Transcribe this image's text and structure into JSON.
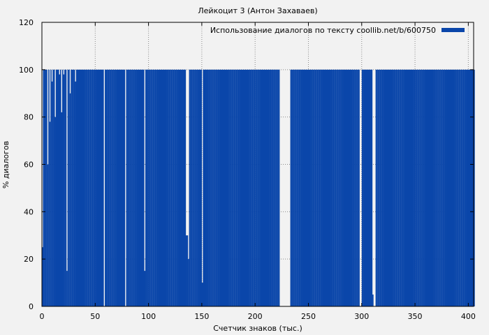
{
  "chart_data": {
    "type": "area",
    "title": "Лейкоцит 3 (Антон Захаваев)",
    "xlabel": "Счетчик знаков (тыс.)",
    "ylabel": "% диалогов",
    "xlim": [
      0,
      405
    ],
    "ylim": [
      0,
      120
    ],
    "x_ticks": [
      0,
      50,
      100,
      150,
      200,
      250,
      300,
      350,
      400
    ],
    "y_ticks": [
      0,
      20,
      40,
      60,
      80,
      100,
      120
    ],
    "grid": true,
    "legend_position": "top-right",
    "series": [
      {
        "name": "Использование диалогов по тексту coollib.net/b/600750",
        "color": "#0a46aa",
        "x": [
          0,
          1,
          2,
          3,
          4,
          5,
          6,
          7,
          8,
          9,
          10,
          11,
          12,
          13,
          14,
          15,
          16,
          17,
          18,
          19,
          20,
          21,
          22,
          23,
          24,
          25,
          26,
          27,
          28,
          29,
          30,
          31,
          32,
          33,
          34,
          35,
          36,
          37,
          38,
          39,
          40,
          41,
          42,
          43,
          44,
          45,
          46,
          47,
          48,
          49,
          50,
          51,
          52,
          53,
          54,
          55,
          56,
          57,
          58,
          59,
          60,
          61,
          62,
          63,
          64,
          65,
          66,
          67,
          68,
          69,
          70,
          71,
          72,
          73,
          74,
          75,
          76,
          77,
          78,
          79,
          80,
          81,
          82,
          83,
          84,
          85,
          86,
          87,
          88,
          89,
          90,
          91,
          92,
          93,
          94,
          95,
          96,
          97,
          98,
          99,
          100,
          101,
          102,
          103,
          104,
          105,
          106,
          107,
          108,
          109,
          110,
          111,
          112,
          113,
          114,
          115,
          116,
          117,
          118,
          119,
          120,
          121,
          122,
          123,
          124,
          125,
          126,
          127,
          128,
          129,
          130,
          131,
          132,
          133,
          134,
          135,
          136,
          137,
          138,
          139,
          140,
          141,
          142,
          143,
          144,
          145,
          146,
          147,
          148,
          149,
          150,
          151,
          152,
          153,
          154,
          155,
          156,
          157,
          158,
          159,
          160,
          161,
          162,
          163,
          164,
          165,
          166,
          167,
          168,
          169,
          170,
          171,
          172,
          173,
          174,
          175,
          176,
          177,
          178,
          179,
          180,
          181,
          182,
          183,
          184,
          185,
          186,
          187,
          188,
          189,
          190,
          191,
          192,
          193,
          194,
          195,
          196,
          197,
          198,
          199,
          200,
          201,
          202,
          203,
          204,
          205,
          206,
          207,
          208,
          209,
          210,
          211,
          212,
          213,
          214,
          215,
          216,
          217,
          218,
          219,
          220,
          221,
          222,
          223,
          224,
          225,
          226,
          227,
          228,
          229,
          230,
          231,
          232,
          233,
          234,
          235,
          236,
          237,
          238,
          239,
          240,
          241,
          242,
          243,
          244,
          245,
          246,
          247,
          248,
          249,
          250,
          251,
          252,
          253,
          254,
          255,
          256,
          257,
          258,
          259,
          260,
          261,
          262,
          263,
          264,
          265,
          266,
          267,
          268,
          269,
          270,
          271,
          272,
          273,
          274,
          275,
          276,
          277,
          278,
          279,
          280,
          281,
          282,
          283,
          284,
          285,
          286,
          287,
          288,
          289,
          290,
          291,
          292,
          293,
          294,
          295,
          296,
          297,
          298,
          299,
          300,
          301,
          302,
          303,
          304,
          305,
          306,
          307,
          308,
          309,
          310,
          311,
          312,
          313,
          314,
          315,
          316,
          317,
          318,
          319,
          320,
          321,
          322,
          323,
          324,
          325,
          326,
          327,
          328,
          329,
          330,
          331,
          332,
          333,
          334,
          335,
          336,
          337,
          338,
          339,
          340,
          341,
          342,
          343,
          344,
          345,
          346,
          347,
          348,
          349,
          350,
          351,
          352,
          353,
          354,
          355,
          356,
          357,
          358,
          359,
          360,
          361,
          362,
          363,
          364,
          365,
          366,
          367,
          368,
          369,
          370,
          371,
          372,
          373,
          374,
          375,
          376,
          377,
          378,
          379,
          380,
          381,
          382,
          383,
          384,
          385,
          386,
          387,
          388,
          389,
          390,
          391,
          392,
          393,
          394,
          395,
          396,
          397,
          398,
          399,
          400,
          401,
          402,
          403,
          404,
          405
        ],
        "values": [
          25,
          100,
          100,
          100,
          100,
          60,
          100,
          78,
          100,
          95,
          100,
          100,
          80,
          100,
          100,
          100,
          98,
          100,
          82,
          100,
          98,
          100,
          100,
          15,
          100,
          100,
          90,
          100,
          100,
          100,
          100,
          95,
          100,
          100,
          100,
          100,
          100,
          100,
          100,
          100,
          100,
          100,
          100,
          100,
          100,
          100,
          100,
          100,
          100,
          100,
          100,
          100,
          100,
          100,
          100,
          100,
          100,
          100,
          0,
          100,
          100,
          100,
          100,
          100,
          100,
          100,
          100,
          100,
          100,
          100,
          100,
          100,
          100,
          100,
          100,
          100,
          100,
          100,
          0,
          100,
          100,
          100,
          100,
          100,
          100,
          100,
          100,
          100,
          100,
          100,
          100,
          100,
          100,
          100,
          100,
          100,
          15,
          100,
          100,
          100,
          100,
          100,
          100,
          100,
          100,
          100,
          100,
          100,
          100,
          100,
          100,
          100,
          100,
          100,
          100,
          100,
          100,
          100,
          100,
          100,
          100,
          100,
          100,
          100,
          100,
          100,
          100,
          100,
          100,
          100,
          100,
          100,
          100,
          100,
          100,
          30,
          30,
          20,
          100,
          100,
          100,
          100,
          100,
          100,
          100,
          100,
          100,
          100,
          100,
          100,
          10,
          100,
          100,
          100,
          100,
          100,
          100,
          100,
          100,
          100,
          100,
          100,
          100,
          100,
          100,
          100,
          100,
          100,
          100,
          100,
          100,
          100,
          100,
          100,
          100,
          100,
          100,
          100,
          100,
          100,
          100,
          100,
          100,
          100,
          100,
          100,
          100,
          100,
          100,
          100,
          100,
          100,
          100,
          100,
          100,
          100,
          100,
          100,
          100,
          100,
          100,
          100,
          100,
          100,
          100,
          100,
          100,
          100,
          100,
          100,
          100,
          100,
          100,
          100,
          100,
          100,
          100,
          100,
          100,
          100,
          100,
          100,
          100,
          0,
          0,
          0,
          0,
          0,
          0,
          0,
          0,
          0,
          0,
          100,
          100,
          100,
          100,
          100,
          100,
          100,
          100,
          100,
          100,
          100,
          100,
          100,
          100,
          100,
          100,
          100,
          100,
          100,
          100,
          100,
          100,
          100,
          100,
          100,
          100,
          100,
          100,
          100,
          100,
          100,
          100,
          100,
          100,
          100,
          100,
          100,
          100,
          100,
          100,
          100,
          100,
          100,
          100,
          100,
          100,
          100,
          100,
          100,
          100,
          100,
          100,
          100,
          100,
          100,
          100,
          100,
          100,
          100,
          100,
          100,
          100,
          100,
          100,
          100,
          0,
          0,
          100,
          100,
          100,
          100,
          100,
          100,
          100,
          100,
          100,
          100,
          5,
          0,
          0,
          100,
          100,
          100,
          100,
          100,
          100,
          100,
          100,
          100,
          100,
          100,
          100,
          100,
          100,
          100,
          100,
          100,
          100,
          100,
          100,
          100,
          100,
          100,
          100,
          100,
          100,
          100,
          100,
          100,
          100,
          100,
          100,
          100,
          100,
          100,
          100,
          100,
          100,
          100,
          100,
          100,
          100,
          100,
          100,
          100,
          100,
          100,
          100,
          100,
          100,
          100,
          100,
          100,
          100,
          100,
          100,
          100,
          100,
          100,
          100,
          100,
          100,
          100,
          100,
          100,
          100,
          100,
          100,
          100,
          100,
          100,
          100,
          100,
          100,
          100,
          100,
          100,
          100,
          100,
          100,
          100,
          100,
          100,
          100,
          100,
          100,
          100,
          100,
          100,
          100,
          100,
          100,
          100
        ]
      }
    ]
  }
}
